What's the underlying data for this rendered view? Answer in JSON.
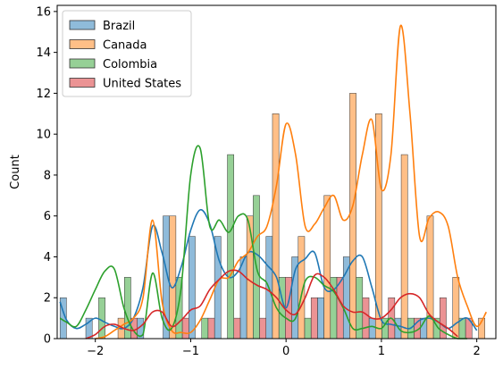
{
  "chart_data": {
    "type": "bar",
    "title": "",
    "xlabel": "",
    "ylabel": "Count",
    "xlim": [
      -2.4,
      2.2
    ],
    "ylim": [
      0,
      16.3
    ],
    "xticks": [
      -2,
      -1,
      0,
      1,
      2
    ],
    "xtick_labels": [
      "−2",
      "−1",
      "0",
      "1",
      "2"
    ],
    "yticks": [
      0,
      2,
      4,
      6,
      8,
      10,
      12,
      14,
      16
    ],
    "grid": false,
    "legend_position": "top-left",
    "bin_starts": [
      -2.37,
      -2.1,
      -1.83,
      -1.56,
      -1.29,
      -1.02,
      -0.75,
      -0.48,
      -0.21,
      0.06,
      0.33,
      0.6,
      0.87,
      1.14,
      1.41,
      1.68,
      1.95
    ],
    "bin_width": 0.27,
    "series": [
      {
        "name": "Brazil",
        "color": "#1f77b4",
        "values": [
          2,
          1,
          0,
          1,
          6,
          5,
          5,
          4,
          5,
          4,
          2,
          4,
          1,
          1,
          1,
          0,
          0
        ],
        "kde_x": [
          -2.37,
          -2.3,
          -2.2,
          -2.1,
          -2.0,
          -1.9,
          -1.8,
          -1.7,
          -1.6,
          -1.5,
          -1.4,
          -1.3,
          -1.2,
          -1.1,
          -1.0,
          -0.9,
          -0.8,
          -0.7,
          -0.6,
          -0.5,
          -0.4,
          -0.3,
          -0.2,
          -0.1,
          0.0,
          0.1,
          0.2,
          0.3,
          0.4,
          0.5,
          0.6,
          0.7,
          0.8,
          0.9,
          1.0,
          1.1,
          1.2,
          1.3,
          1.4,
          1.5,
          1.6,
          1.7,
          1.8,
          1.9,
          2.0
        ],
        "kde_y": [
          1.8,
          0.9,
          0.5,
          0.7,
          1.0,
          0.8,
          0.6,
          0.5,
          1.0,
          2.5,
          5.5,
          4.2,
          2.5,
          3.5,
          5.3,
          6.3,
          5.6,
          3.8,
          3.0,
          3.3,
          4.2,
          4.1,
          3.6,
          3.0,
          1.5,
          3.4,
          3.9,
          4.2,
          2.5,
          2.4,
          3.0,
          3.8,
          4.0,
          2.5,
          0.9,
          0.7,
          0.6,
          0.5,
          0.9,
          1.0,
          0.8,
          0.5,
          0.8,
          1.0,
          0.4
        ]
      },
      {
        "name": "Canada",
        "color": "#ff7f0e",
        "values": [
          0,
          0,
          1,
          0,
          6,
          0,
          0,
          6,
          11,
          5,
          7,
          12,
          11,
          9,
          6,
          3,
          1
        ],
        "kde_x": [
          -2.0,
          -1.9,
          -1.8,
          -1.7,
          -1.6,
          -1.5,
          -1.4,
          -1.3,
          -1.2,
          -1.1,
          -1.0,
          -0.9,
          -0.8,
          -0.7,
          -0.6,
          -0.5,
          -0.4,
          -0.3,
          -0.2,
          -0.1,
          0.0,
          0.1,
          0.2,
          0.3,
          0.4,
          0.5,
          0.6,
          0.7,
          0.8,
          0.9,
          1.0,
          1.1,
          1.2,
          1.3,
          1.4,
          1.5,
          1.6,
          1.7,
          1.8,
          1.9,
          2.0,
          2.1
        ],
        "kde_y": [
          0.0,
          0.1,
          0.4,
          0.7,
          1.0,
          2.0,
          5.8,
          1.8,
          0.4,
          0.3,
          0.3,
          0.9,
          1.9,
          2.9,
          3.0,
          3.8,
          4.2,
          5.0,
          5.5,
          7.5,
          10.5,
          9.0,
          5.5,
          5.6,
          6.4,
          7.0,
          5.8,
          6.5,
          9.0,
          10.7,
          7.3,
          9.0,
          15.3,
          11.0,
          5.0,
          5.9,
          6.2,
          5.5,
          3.0,
          1.6,
          0.6,
          1.3
        ]
      },
      {
        "name": "Colombia",
        "color": "#2ca02c",
        "values": [
          0,
          2,
          3,
          0,
          3,
          1,
          9,
          7,
          3,
          1,
          3,
          3,
          1,
          1,
          1,
          1,
          0
        ],
        "kde_x": [
          -2.37,
          -2.3,
          -2.2,
          -2.1,
          -2.0,
          -1.9,
          -1.8,
          -1.7,
          -1.6,
          -1.5,
          -1.4,
          -1.3,
          -1.2,
          -1.1,
          -1.0,
          -0.9,
          -0.8,
          -0.7,
          -0.6,
          -0.5,
          -0.4,
          -0.3,
          -0.2,
          -0.1,
          0.0,
          0.1,
          0.2,
          0.3,
          0.4,
          0.5,
          0.6,
          0.7,
          0.8,
          0.9,
          1.0,
          1.1,
          1.2,
          1.3,
          1.4,
          1.5,
          1.6,
          1.7,
          1.8,
          1.9
        ],
        "kde_y": [
          1.0,
          0.8,
          0.6,
          1.4,
          2.4,
          3.3,
          3.4,
          1.5,
          0.4,
          0.2,
          3.2,
          1.0,
          0.5,
          2.5,
          8.0,
          9.3,
          5.5,
          5.8,
          5.2,
          6.0,
          5.8,
          3.3,
          2.7,
          1.5,
          1.0,
          1.0,
          2.8,
          3.0,
          2.6,
          2.3,
          1.5,
          0.5,
          0.5,
          0.6,
          0.5,
          1.0,
          0.4,
          0.3,
          0.5,
          1.1,
          0.5,
          0.2,
          0.0,
          0.0
        ]
      },
      {
        "name": "United States",
        "color": "#d62728",
        "values": [
          0,
          0,
          1,
          0,
          1,
          1,
          1,
          1,
          3,
          2,
          3,
          2,
          2,
          1,
          2,
          1,
          0
        ],
        "kde_x": [
          -2.1,
          -2.0,
          -1.9,
          -1.8,
          -1.7,
          -1.6,
          -1.5,
          -1.4,
          -1.3,
          -1.2,
          -1.1,
          -1.0,
          -0.9,
          -0.8,
          -0.7,
          -0.6,
          -0.5,
          -0.4,
          -0.3,
          -0.2,
          -0.1,
          0.0,
          0.1,
          0.2,
          0.3,
          0.4,
          0.5,
          0.6,
          0.7,
          0.8,
          0.9,
          1.0,
          1.1,
          1.2,
          1.3,
          1.4,
          1.5,
          1.6,
          1.7,
          1.8
        ],
        "kde_y": [
          0.0,
          0.2,
          0.6,
          0.7,
          0.5,
          0.4,
          0.7,
          1.3,
          1.3,
          0.6,
          0.9,
          1.4,
          1.6,
          2.4,
          2.9,
          3.3,
          3.3,
          2.9,
          2.6,
          2.4,
          2.0,
          1.4,
          1.2,
          2.0,
          3.1,
          3.0,
          2.4,
          1.6,
          1.3,
          1.3,
          1.0,
          1.0,
          1.4,
          2.0,
          2.2,
          2.0,
          1.2,
          0.8,
          0.5,
          0.1
        ]
      }
    ]
  }
}
